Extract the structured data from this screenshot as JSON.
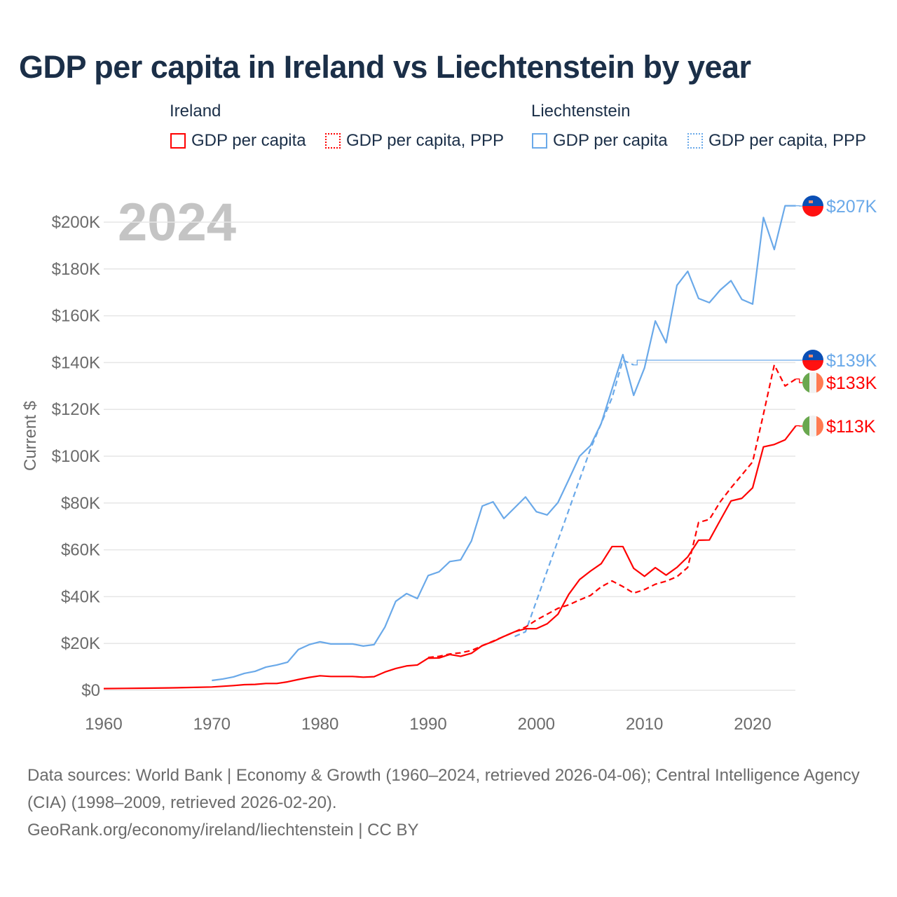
{
  "title": "GDP per capita in Ireland vs Liechtenstein by year",
  "legend": {
    "groups": [
      {
        "name": "Ireland"
      },
      {
        "name": "Liechtenstein"
      }
    ],
    "items": [
      {
        "label": "GDP per capita",
        "color": "#ff0000",
        "style": "solid"
      },
      {
        "label": "GDP per capita, PPP",
        "color": "#ff0000",
        "style": "dotted"
      },
      {
        "label": "GDP per capita",
        "color": "#6aa9e9",
        "style": "solid"
      },
      {
        "label": "GDP per capita, PPP",
        "color": "#6aa9e9",
        "style": "dotted"
      }
    ]
  },
  "year_watermark": "2024",
  "footer": {
    "line1": "Data sources: World Bank | Economy & Growth (1960–2024, retrieved 2026-04-06); Central Intelligence Agency (CIA) (1998–2009, retrieved 2026-02-20).",
    "line2": "GeoRank.org/economy/ireland/liechtenstein | CC BY"
  },
  "chart_data": {
    "type": "line",
    "title": "GDP per capita in Ireland vs Liechtenstein by year",
    "xlabel": "",
    "ylabel": "Current $",
    "xlim": [
      1960,
      2024
    ],
    "ylim": [
      0,
      200000
    ],
    "xticks": [
      {
        "v": 1960,
        "label": "1960"
      },
      {
        "v": 1970,
        "label": "1970"
      },
      {
        "v": 1980,
        "label": "1980"
      },
      {
        "v": 1990,
        "label": "1990"
      },
      {
        "v": 2000,
        "label": "2000"
      },
      {
        "v": 2010,
        "label": "2010"
      },
      {
        "v": 2020,
        "label": "2020"
      }
    ],
    "yticks": [
      {
        "v": 0,
        "label": "$0"
      },
      {
        "v": 20000,
        "label": "$20K"
      },
      {
        "v": 40000,
        "label": "$40K"
      },
      {
        "v": 60000,
        "label": "$60K"
      },
      {
        "v": 80000,
        "label": "$80K"
      },
      {
        "v": 100000,
        "label": "$100K"
      },
      {
        "v": 120000,
        "label": "$120K"
      },
      {
        "v": 140000,
        "label": "$140K"
      },
      {
        "v": 160000,
        "label": "$160K"
      },
      {
        "v": 180000,
        "label": "$180K"
      },
      {
        "v": 200000,
        "label": "$200K"
      }
    ],
    "grid": true,
    "series": [
      {
        "name": "Liechtenstein GDP per capita",
        "color": "#6aa9e9",
        "dash": false,
        "end_label": "$207K",
        "flag": "liechtenstein",
        "x": [
          1970,
          1971,
          1972,
          1973,
          1974,
          1975,
          1976,
          1977,
          1978,
          1979,
          1980,
          1981,
          1982,
          1983,
          1984,
          1985,
          1986,
          1987,
          1988,
          1989,
          1990,
          1991,
          1992,
          1993,
          1994,
          1995,
          1996,
          1997,
          1998,
          1999,
          2000,
          2001,
          2002,
          2003,
          2004,
          2005,
          2006,
          2007,
          2008,
          2009,
          2010,
          2011,
          2012,
          2013,
          2014,
          2015,
          2016,
          2017,
          2018,
          2019,
          2020,
          2021,
          2022,
          2023,
          2024
        ],
        "y": [
          4200,
          4800,
          5700,
          7200,
          8100,
          9900,
          10800,
          12000,
          17400,
          19500,
          20700,
          19800,
          19800,
          19800,
          18900,
          19500,
          27000,
          38000,
          41300,
          39200,
          49000,
          50600,
          55000,
          55700,
          63800,
          78700,
          80500,
          73400,
          78000,
          82600,
          76300,
          74900,
          80200,
          90000,
          100000,
          104500,
          114000,
          128700,
          143400,
          126000,
          137700,
          157800,
          148500,
          173000,
          179000,
          167400,
          165600,
          171000,
          175000,
          167000,
          165000,
          202000,
          188300,
          207000,
          207000
        ]
      },
      {
        "name": "Liechtenstein GDP per capita, PPP",
        "color": "#6aa9e9",
        "dash": true,
        "end_label": "$139K",
        "flag": "liechtenstein",
        "x": [
          1998,
          1999,
          2000,
          2001,
          2002,
          2003,
          2004,
          2005,
          2006,
          2007,
          2008,
          2009
        ],
        "y": [
          23000,
          25000,
          38000,
          51000,
          64000,
          77000,
          90000,
          103000,
          114000,
          125000,
          141000,
          139000
        ]
      },
      {
        "name": "Ireland GDP per capita, PPP",
        "color": "#ff0000",
        "dash": true,
        "end_label": "$133K",
        "flag": "ireland",
        "x": [
          1990,
          1991,
          1992,
          1993,
          1994,
          1995,
          1996,
          1997,
          1998,
          1999,
          2000,
          2001,
          2002,
          2003,
          2004,
          2005,
          2006,
          2007,
          2008,
          2009,
          2010,
          2011,
          2012,
          2013,
          2014,
          2015,
          2016,
          2017,
          2018,
          2019,
          2020,
          2021,
          2022,
          2023,
          2024
        ],
        "y": [
          14000,
          14500,
          15500,
          16000,
          17000,
          19000,
          21000,
          23000,
          25000,
          27000,
          30000,
          32500,
          35000,
          36500,
          38600,
          40500,
          44200,
          46700,
          44300,
          41500,
          43000,
          45300,
          46600,
          48500,
          52500,
          71700,
          73000,
          80500,
          86500,
          92000,
          97600,
          118000,
          139000,
          130000,
          133000
        ]
      },
      {
        "name": "Ireland GDP per capita",
        "color": "#ff0000",
        "dash": false,
        "end_label": "$113K",
        "flag": "ireland",
        "x": [
          1960,
          1962,
          1964,
          1966,
          1968,
          1970,
          1971,
          1972,
          1973,
          1974,
          1975,
          1976,
          1977,
          1978,
          1979,
          1980,
          1981,
          1982,
          1983,
          1984,
          1985,
          1986,
          1987,
          1988,
          1989,
          1990,
          1991,
          1992,
          1993,
          1994,
          1995,
          1996,
          1997,
          1998,
          1999,
          2000,
          2001,
          2002,
          2003,
          2004,
          2005,
          2006,
          2007,
          2008,
          2009,
          2010,
          2011,
          2012,
          2013,
          2014,
          2015,
          2016,
          2017,
          2018,
          2019,
          2020,
          2021,
          2022,
          2023,
          2024
        ],
        "y": [
          700,
          800,
          900,
          1000,
          1200,
          1400,
          1700,
          2000,
          2400,
          2500,
          2900,
          2900,
          3600,
          4600,
          5500,
          6200,
          5900,
          5900,
          5900,
          5600,
          5800,
          7800,
          9300,
          10400,
          10800,
          13700,
          13800,
          15300,
          14500,
          15800,
          19100,
          20800,
          23000,
          25000,
          26300,
          26300,
          28400,
          32500,
          41000,
          47300,
          50900,
          54100,
          61400,
          61400,
          52100,
          48700,
          52400,
          49200,
          52500,
          57000,
          64100,
          64200,
          72600,
          80900,
          82000,
          86500,
          104000,
          105000,
          107000,
          113000
        ]
      }
    ]
  }
}
